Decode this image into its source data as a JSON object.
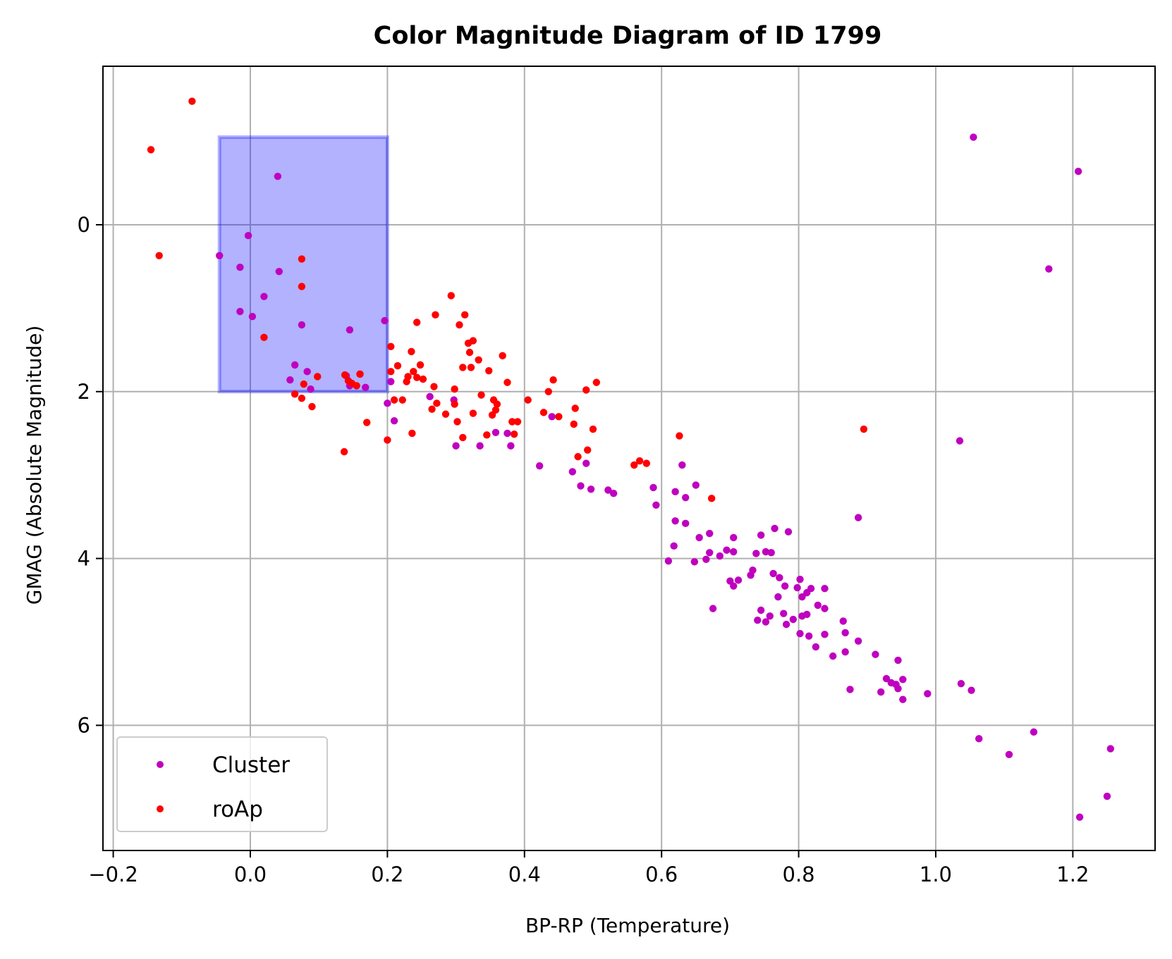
{
  "chart_data": {
    "type": "scatter",
    "title": "Color Magnitude Diagram of ID 1799",
    "xlabel": "BP-RP (Temperature)",
    "ylabel": "GMAG (Absolute Magnitude)",
    "xlim": [
      -0.215,
      1.32
    ],
    "ylim": [
      7.5,
      -1.9
    ],
    "y_inverted": true,
    "grid": true,
    "legend_position": "lower-left",
    "x_ticks": [
      {
        "value": -0.2,
        "label": "−0.2"
      },
      {
        "value": 0.0,
        "label": "0.0"
      },
      {
        "value": 0.2,
        "label": "0.2"
      },
      {
        "value": 0.4,
        "label": "0.4"
      },
      {
        "value": 0.6,
        "label": "0.6"
      },
      {
        "value": 0.8,
        "label": "0.8"
      },
      {
        "value": 1.0,
        "label": "1.0"
      },
      {
        "value": 1.2,
        "label": "1.2"
      }
    ],
    "y_ticks": [
      {
        "value": 0,
        "label": "0"
      },
      {
        "value": 2,
        "label": "2"
      },
      {
        "value": 4,
        "label": "4"
      },
      {
        "value": 6,
        "label": "6"
      }
    ],
    "highlight_region": {
      "x": [
        -0.045,
        0.2
      ],
      "y": [
        -1.05,
        2.0
      ],
      "color": "#0000ff",
      "opacity": 0.3
    },
    "series": [
      {
        "name": "Cluster",
        "color": "#bf00bf",
        "points": [
          [
            0.04,
            -0.58
          ],
          [
            -0.045,
            0.37
          ],
          [
            -0.003,
            0.13
          ],
          [
            -0.015,
            0.51
          ],
          [
            0.042,
            0.56
          ],
          [
            0.02,
            0.86
          ],
          [
            -0.015,
            1.04
          ],
          [
            0.003,
            1.1
          ],
          [
            0.075,
            1.2
          ],
          [
            0.145,
            1.26
          ],
          [
            0.196,
            1.15
          ],
          [
            0.065,
            1.68
          ],
          [
            0.058,
            1.86
          ],
          [
            0.083,
            1.76
          ],
          [
            0.088,
            1.97
          ],
          [
            0.14,
            1.81
          ],
          [
            0.145,
            1.93
          ],
          [
            0.16,
            1.79
          ],
          [
            0.168,
            1.95
          ],
          [
            0.205,
            1.88
          ],
          [
            0.2,
            2.14
          ],
          [
            0.21,
            2.35
          ],
          [
            0.262,
            2.06
          ],
          [
            0.297,
            2.1
          ],
          [
            0.3,
            2.65
          ],
          [
            0.335,
            2.65
          ],
          [
            0.358,
            2.49
          ],
          [
            0.375,
            2.5
          ],
          [
            0.38,
            2.65
          ],
          [
            0.44,
            2.3
          ],
          [
            0.422,
            2.89
          ],
          [
            0.47,
            2.96
          ],
          [
            0.49,
            2.86
          ],
          [
            0.482,
            3.13
          ],
          [
            0.497,
            3.17
          ],
          [
            0.522,
            3.18
          ],
          [
            0.53,
            3.22
          ],
          [
            0.588,
            3.15
          ],
          [
            0.592,
            3.36
          ],
          [
            0.62,
            3.2
          ],
          [
            0.63,
            2.88
          ],
          [
            0.65,
            3.12
          ],
          [
            0.635,
            3.27
          ],
          [
            0.62,
            3.55
          ],
          [
            0.635,
            3.58
          ],
          [
            0.618,
            3.85
          ],
          [
            0.61,
            4.03
          ],
          [
            0.648,
            4.04
          ],
          [
            0.655,
            3.75
          ],
          [
            0.665,
            4.01
          ],
          [
            0.67,
            3.7
          ],
          [
            0.67,
            3.93
          ],
          [
            0.685,
            3.97
          ],
          [
            0.695,
            3.9
          ],
          [
            0.705,
            3.75
          ],
          [
            0.705,
            3.92
          ],
          [
            0.7,
            4.27
          ],
          [
            0.705,
            4.33
          ],
          [
            0.712,
            4.26
          ],
          [
            0.675,
            4.6
          ],
          [
            0.73,
            4.2
          ],
          [
            0.733,
            4.14
          ],
          [
            0.738,
            3.94
          ],
          [
            0.745,
            3.72
          ],
          [
            0.752,
            3.92
          ],
          [
            0.76,
            3.93
          ],
          [
            0.765,
            3.64
          ],
          [
            0.785,
            3.68
          ],
          [
            0.763,
            4.18
          ],
          [
            0.772,
            4.23
          ],
          [
            0.78,
            4.33
          ],
          [
            0.77,
            4.46
          ],
          [
            0.745,
            4.62
          ],
          [
            0.74,
            4.74
          ],
          [
            0.752,
            4.76
          ],
          [
            0.758,
            4.69
          ],
          [
            0.778,
            4.66
          ],
          [
            0.782,
            4.79
          ],
          [
            0.792,
            4.73
          ],
          [
            0.798,
            4.35
          ],
          [
            0.802,
            4.25
          ],
          [
            0.805,
            4.46
          ],
          [
            0.812,
            4.41
          ],
          [
            0.818,
            4.36
          ],
          [
            0.805,
            4.69
          ],
          [
            0.812,
            4.67
          ],
          [
            0.828,
            4.56
          ],
          [
            0.838,
            4.6
          ],
          [
            0.838,
            4.36
          ],
          [
            0.802,
            4.9
          ],
          [
            0.815,
            4.93
          ],
          [
            0.825,
            5.06
          ],
          [
            0.838,
            4.91
          ],
          [
            0.85,
            5.17
          ],
          [
            0.865,
            4.75
          ],
          [
            0.868,
            4.89
          ],
          [
            0.868,
            5.12
          ],
          [
            0.887,
            4.99
          ],
          [
            0.875,
            5.57
          ],
          [
            0.887,
            3.51
          ],
          [
            0.912,
            5.15
          ],
          [
            0.92,
            5.6
          ],
          [
            0.928,
            5.44
          ],
          [
            0.935,
            5.49
          ],
          [
            0.942,
            5.51
          ],
          [
            0.945,
            5.22
          ],
          [
            0.952,
            5.45
          ],
          [
            0.952,
            5.69
          ],
          [
            0.945,
            5.56
          ],
          [
            0.988,
            5.62
          ],
          [
            1.035,
            2.59
          ],
          [
            1.037,
            5.5
          ],
          [
            1.052,
            5.58
          ],
          [
            1.055,
            -1.05
          ],
          [
            1.063,
            6.16
          ],
          [
            1.107,
            6.35
          ],
          [
            1.143,
            6.08
          ],
          [
            1.165,
            0.53
          ],
          [
            1.208,
            -0.64
          ],
          [
            1.21,
            7.1
          ],
          [
            1.25,
            6.85
          ],
          [
            1.255,
            6.28
          ]
        ]
      },
      {
        "name": "roAp",
        "color": "#ff0000",
        "points": [
          [
            -0.085,
            -1.48
          ],
          [
            -0.145,
            -0.9
          ],
          [
            -0.133,
            0.37
          ],
          [
            0.075,
            0.41
          ],
          [
            0.075,
            0.74
          ],
          [
            0.02,
            1.35
          ],
          [
            0.098,
            1.82
          ],
          [
            0.078,
            1.91
          ],
          [
            0.065,
            2.03
          ],
          [
            0.075,
            2.08
          ],
          [
            0.09,
            2.18
          ],
          [
            0.137,
            2.72
          ],
          [
            0.17,
            2.37
          ],
          [
            0.2,
            2.58
          ],
          [
            0.138,
            1.8
          ],
          [
            0.143,
            1.87
          ],
          [
            0.148,
            1.9
          ],
          [
            0.155,
            1.93
          ],
          [
            0.16,
            1.79
          ],
          [
            0.205,
            1.46
          ],
          [
            0.215,
            1.69
          ],
          [
            0.205,
            1.76
          ],
          [
            0.21,
            2.1
          ],
          [
            0.222,
            2.1
          ],
          [
            0.228,
            1.88
          ],
          [
            0.23,
            1.82
          ],
          [
            0.238,
            1.76
          ],
          [
            0.235,
            1.52
          ],
          [
            0.243,
            1.83
          ],
          [
            0.248,
            1.68
          ],
          [
            0.252,
            1.85
          ],
          [
            0.243,
            1.17
          ],
          [
            0.236,
            2.5
          ],
          [
            0.265,
            2.21
          ],
          [
            0.268,
            1.94
          ],
          [
            0.272,
            2.14
          ],
          [
            0.27,
            1.08
          ],
          [
            0.285,
            2.27
          ],
          [
            0.293,
            0.85
          ],
          [
            0.298,
            2.15
          ],
          [
            0.298,
            1.97
          ],
          [
            0.302,
            2.36
          ],
          [
            0.305,
            1.2
          ],
          [
            0.31,
            1.71
          ],
          [
            0.31,
            2.55
          ],
          [
            0.313,
            1.08
          ],
          [
            0.318,
            1.42
          ],
          [
            0.32,
            1.53
          ],
          [
            0.322,
            1.71
          ],
          [
            0.325,
            1.39
          ],
          [
            0.325,
            2.26
          ],
          [
            0.333,
            1.62
          ],
          [
            0.337,
            2.04
          ],
          [
            0.345,
            2.52
          ],
          [
            0.348,
            1.75
          ],
          [
            0.353,
            2.28
          ],
          [
            0.355,
            2.1
          ],
          [
            0.358,
            2.22
          ],
          [
            0.36,
            2.15
          ],
          [
            0.368,
            1.57
          ],
          [
            0.375,
            1.89
          ],
          [
            0.382,
            2.36
          ],
          [
            0.385,
            2.51
          ],
          [
            0.39,
            2.36
          ],
          [
            0.405,
            2.1
          ],
          [
            0.428,
            2.25
          ],
          [
            0.435,
            2.0
          ],
          [
            0.442,
            1.86
          ],
          [
            0.45,
            2.3
          ],
          [
            0.472,
            2.39
          ],
          [
            0.474,
            2.2
          ],
          [
            0.478,
            2.78
          ],
          [
            0.49,
            1.98
          ],
          [
            0.492,
            2.7
          ],
          [
            0.5,
            2.45
          ],
          [
            0.505,
            1.89
          ],
          [
            0.56,
            2.88
          ],
          [
            0.568,
            2.83
          ],
          [
            0.578,
            2.86
          ],
          [
            0.626,
            2.53
          ],
          [
            0.673,
            3.28
          ],
          [
            0.895,
            2.45
          ]
        ]
      }
    ]
  }
}
